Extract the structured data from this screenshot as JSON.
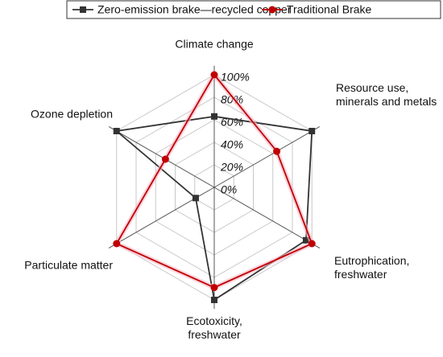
{
  "chart_data": {
    "type": "radar",
    "categories": [
      "Climate change",
      "Resource use,\nminerals and metals",
      "Eutrophication,\nfreshwater",
      "Ecotoxicity,\nfreshwater",
      "Particulate matter",
      "Ozone depletion"
    ],
    "series": [
      {
        "name": "Zero-emission brake—recycled copper",
        "color": "#333333",
        "marker": "square",
        "values": [
          63,
          100,
          94,
          100,
          19,
          100
        ]
      },
      {
        "name": "Traditional Brake",
        "color": "#c00000",
        "marker": "circle",
        "values": [
          100,
          64,
          100,
          89,
          100,
          50
        ]
      }
    ],
    "ylim": [
      0,
      100
    ],
    "yticks": [
      {
        "value": 0,
        "label": "0%"
      },
      {
        "value": 20,
        "label": "20%"
      },
      {
        "value": 40,
        "label": "40%"
      },
      {
        "value": 60,
        "label": "60%"
      },
      {
        "value": 80,
        "label": "80%"
      },
      {
        "value": 100,
        "label": "100%"
      }
    ],
    "grid": true,
    "legend": "top"
  }
}
